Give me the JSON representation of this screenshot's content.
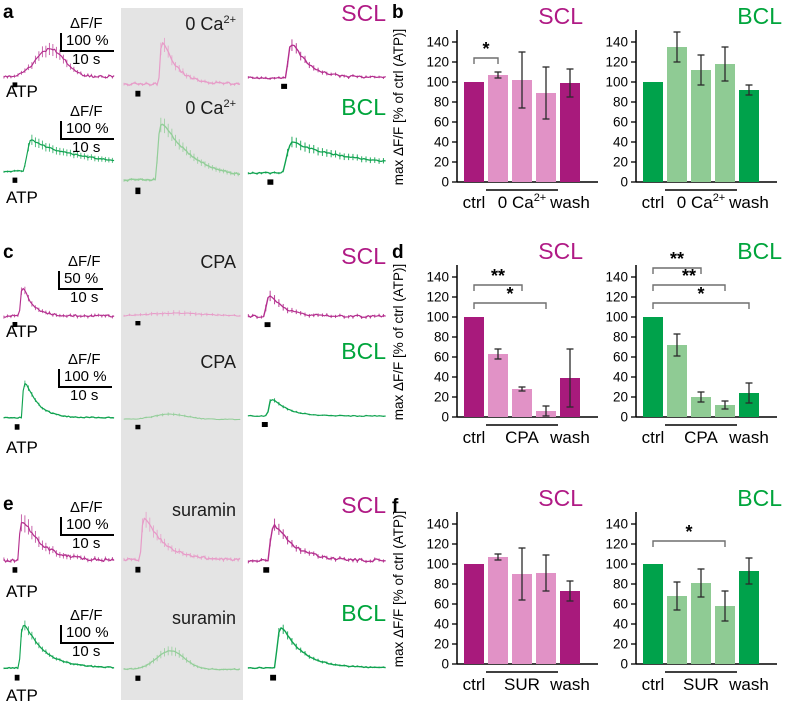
{
  "colors": {
    "scl_dark": "#a81a7c",
    "scl_light": "#e192c6",
    "bcl_dark": "#00a24b",
    "bcl_light": "#8fcb94",
    "scl_title": "#b01a85",
    "bcl_title": "#00a53c",
    "trace_scl_dark": "#b42e8e",
    "trace_scl_light": "#e79cc8",
    "trace_bcl_dark": "#10a350",
    "trace_bcl_light": "#93ce99",
    "gray_band": "#e4e4e4",
    "error_bar": "#2b2b2b",
    "bracket": "#6f6f6f",
    "axis": "#000000"
  },
  "trace_section": {
    "panels": [
      {
        "letter": "a",
        "condition": {
          "base": "0 Ca",
          "sup": "2+"
        },
        "rows": [
          {
            "cell": "SCL",
            "atp": "ATP",
            "scale": {
              "df": "ΔF/F",
              "amount": "100 %",
              "time": "10 s"
            }
          },
          {
            "cell": "BCL",
            "atp": "ATP",
            "scale": {
              "df": "ΔF/F",
              "amount": "100 %",
              "time": "10 s"
            }
          }
        ]
      },
      {
        "letter": "c",
        "condition": {
          "base": "CPA",
          "sup": ""
        },
        "rows": [
          {
            "cell": "SCL",
            "atp": "ATP",
            "scale": {
              "df": "ΔF/F",
              "amount": "50 %",
              "time": "10 s"
            }
          },
          {
            "cell": "BCL",
            "atp": "ATP",
            "scale": {
              "df": "ΔF/F",
              "amount": "100 %",
              "time": "10 s"
            }
          }
        ]
      },
      {
        "letter": "e",
        "condition": {
          "base": "suramin",
          "sup": ""
        },
        "rows": [
          {
            "cell": "SCL",
            "atp": "ATP",
            "scale": {
              "df": "ΔF/F",
              "amount": "100 %",
              "time": "10 s"
            }
          },
          {
            "cell": "BCL",
            "atp": "ATP",
            "scale": {
              "df": "ΔF/F",
              "amount": "100 %",
              "time": "10 s"
            }
          }
        ]
      }
    ]
  },
  "chart_section": {
    "letters": [
      "b",
      "d",
      "f"
    ]
  },
  "chart_data": {
    "bar_charts": [
      {
        "id": "b_scl",
        "type": "bar",
        "title": "SCL",
        "title_color": "#b01a85",
        "color_dark": "#a81a7c",
        "color_light": "#e192c6",
        "show_ylabel": true,
        "ylabel": "max ΔF/F [% of ctrl (ATP)]",
        "ylim": [
          0,
          150
        ],
        "yticks": [
          0,
          20,
          40,
          60,
          80,
          100,
          120,
          140
        ],
        "categories": [
          "ctrl",
          "0 Ca2+",
          "0 Ca2+",
          "0 Ca2+",
          "wash"
        ],
        "values": [
          100,
          107,
          102,
          89,
          99
        ],
        "errors": [
          0,
          3,
          28,
          26,
          14
        ],
        "dark": [
          1,
          0,
          0,
          0,
          1
        ],
        "x_left": "ctrl",
        "x_right": "wash",
        "group": {
          "base": "0 Ca",
          "sup": "2+"
        },
        "margin_left": 67,
        "y_offset": 0,
        "sig": [
          {
            "i1": 0,
            "i2": 1,
            "stars": "*",
            "y": 124
          }
        ]
      },
      {
        "id": "b_bcl",
        "type": "bar",
        "title": "BCL",
        "title_color": "#00a53c",
        "color_dark": "#00a24b",
        "color_light": "#8fcb94",
        "show_ylabel": false,
        "ylabel": "max ΔF/F [% of ctrl (ATP)]",
        "ylim": [
          0,
          150
        ],
        "yticks": [
          0,
          20,
          40,
          60,
          80,
          100,
          120,
          140
        ],
        "categories": [
          "ctrl",
          "0 Ca2+",
          "0 Ca2+",
          "0 Ca2+",
          "wash"
        ],
        "values": [
          100,
          135,
          112,
          118,
          92
        ],
        "errors": [
          0,
          15,
          15,
          17,
          5
        ],
        "dark": [
          1,
          0,
          0,
          0,
          1
        ],
        "x_left": "ctrl",
        "x_right": "wash",
        "group": {
          "base": "0 Ca",
          "sup": "2+"
        },
        "margin_left": 47,
        "y_offset": 0,
        "sig": []
      },
      {
        "id": "d_scl",
        "type": "bar",
        "title": "SCL",
        "title_color": "#b01a85",
        "color_dark": "#a81a7c",
        "color_light": "#e192c6",
        "show_ylabel": true,
        "ylabel": "max ΔF/F [% of ctrl (ATP)]",
        "ylim": [
          0,
          150
        ],
        "yticks": [
          0,
          20,
          40,
          60,
          80,
          100,
          120,
          140
        ],
        "categories": [
          "ctrl",
          "CPA",
          "CPA",
          "CPA",
          "wash"
        ],
        "values": [
          100,
          63,
          28,
          6,
          39
        ],
        "errors": [
          0,
          5,
          2,
          5,
          29
        ],
        "dark": [
          1,
          0,
          0,
          0,
          1
        ],
        "x_left": "ctrl",
        "x_right": "wash",
        "group": {
          "base": "CPA",
          "sup": ""
        },
        "margin_left": 67,
        "y_offset": 0,
        "sig": [
          {
            "i1": 0,
            "i2": 2,
            "stars": "**",
            "y": 132
          },
          {
            "i1": 0,
            "i2": 3,
            "stars": "*",
            "y": 114
          }
        ]
      },
      {
        "id": "d_bcl",
        "type": "bar",
        "title": "BCL",
        "title_color": "#00a53c",
        "color_dark": "#00a24b",
        "color_light": "#8fcb94",
        "show_ylabel": false,
        "ylabel": "max ΔF/F [% of ctrl (ATP)]",
        "ylim": [
          0,
          150
        ],
        "yticks": [
          0,
          20,
          40,
          60,
          80,
          100,
          120,
          140
        ],
        "categories": [
          "ctrl",
          "CPA",
          "CPA",
          "CPA",
          "wash"
        ],
        "values": [
          100,
          72,
          20,
          12,
          24
        ],
        "errors": [
          0,
          11,
          5,
          4,
          10
        ],
        "dark": [
          1,
          0,
          0,
          0,
          1
        ],
        "x_left": "ctrl",
        "x_right": "wash",
        "group": {
          "base": "CPA",
          "sup": ""
        },
        "margin_left": 47,
        "y_offset": 0,
        "sig": [
          {
            "i1": 0,
            "i2": 2,
            "stars": "**",
            "y": 149
          },
          {
            "i1": 0,
            "i2": 3,
            "stars": "**",
            "y": 132
          },
          {
            "i1": 0,
            "i2": 4,
            "stars": "*",
            "y": 114
          }
        ]
      },
      {
        "id": "f_scl",
        "type": "bar",
        "title": "SCL",
        "title_color": "#b01a85",
        "color_dark": "#a81a7c",
        "color_light": "#e192c6",
        "show_ylabel": true,
        "ylabel": "max ΔF/F [% of ctrl (ATP)]",
        "ylim": [
          0,
          150
        ],
        "yticks": [
          0,
          20,
          40,
          60,
          80,
          100,
          120,
          140
        ],
        "categories": [
          "ctrl",
          "SUR",
          "SUR",
          "SUR",
          "wash"
        ],
        "values": [
          100,
          107,
          90,
          91,
          73
        ],
        "errors": [
          0,
          3,
          26,
          18,
          10
        ],
        "dark": [
          1,
          0,
          0,
          0,
          1
        ],
        "x_left": "ctrl",
        "x_right": "wash",
        "group": {
          "base": "SUR",
          "sup": ""
        },
        "margin_left": 67,
        "y_offset": 12,
        "sig": []
      },
      {
        "id": "f_bcl",
        "type": "bar",
        "title": "BCL",
        "title_color": "#00a53c",
        "color_dark": "#00a24b",
        "color_light": "#8fcb94",
        "show_ylabel": false,
        "ylabel": "max ΔF/F [% of ctrl (ATP)]",
        "ylim": [
          0,
          150
        ],
        "yticks": [
          0,
          20,
          40,
          60,
          80,
          100,
          120,
          140
        ],
        "categories": [
          "ctrl",
          "SUR",
          "SUR",
          "SUR",
          "wash"
        ],
        "values": [
          100,
          68,
          81,
          58,
          93
        ],
        "errors": [
          0,
          14,
          14,
          15,
          13
        ],
        "dark": [
          1,
          0,
          0,
          0,
          1
        ],
        "x_left": "ctrl",
        "x_right": "wash",
        "group": {
          "base": "SUR",
          "sup": ""
        },
        "margin_left": 47,
        "y_offset": 12,
        "sig": [
          {
            "i1": 0,
            "i2": 3,
            "stars": "*",
            "y": 123
          }
        ]
      }
    ],
    "traces": [
      {
        "id": "a_scl_ctrl",
        "panel": "a",
        "row": "scl",
        "condition": "ctrl",
        "shade": "dark",
        "kind": "bump",
        "peak": 0.5,
        "center": 0.42,
        "sigma": 0.13,
        "noise": 0.022,
        "err_every": 2,
        "err_base": 1.4,
        "err_peak": 5,
        "mark": 0.1
      },
      {
        "id": "a_scl_0ca",
        "panel": "a",
        "row": "scl",
        "condition": "0 Ca2+",
        "shade": "light",
        "kind": "sharp",
        "peak": 0.95,
        "onset": 0.3,
        "tau": 0.12,
        "noise": 0.02,
        "err_every": 2,
        "err_base": 1.2,
        "err_peak": 8,
        "mark": 0.12
      },
      {
        "id": "a_scl_wash",
        "panel": "a",
        "row": "scl",
        "condition": "wash",
        "shade": "dark",
        "kind": "sharp",
        "peak": 0.88,
        "onset": 0.28,
        "tau": 0.12,
        "noise": 0.02,
        "err_every": 2,
        "err_base": 1.2,
        "err_peak": 7,
        "mark": 0.26
      },
      {
        "id": "a_bcl_ctrl",
        "panel": "a",
        "row": "bcl",
        "condition": "ctrl",
        "shade": "dark",
        "kind": "plateau",
        "peak": 0.6,
        "onset": 0.18,
        "tau": 0.5,
        "noise": 0.012,
        "err_every": 2,
        "err_base": 1.0,
        "err_peak": 4.5,
        "mark": 0.1
      },
      {
        "id": "a_bcl_0ca",
        "panel": "a",
        "row": "bcl",
        "condition": "0 Ca2+",
        "shade": "light",
        "kind": "sharp",
        "peak": 0.95,
        "onset": 0.28,
        "tau": 0.28,
        "noise": 0.012,
        "err_every": 2,
        "err_base": 1.0,
        "err_peak": 6,
        "mark": 0.12
      },
      {
        "id": "a_bcl_wash",
        "panel": "a",
        "row": "bcl",
        "condition": "wash",
        "shade": "dark",
        "kind": "plateau",
        "peak": 0.58,
        "onset": 0.25,
        "tau": 0.55,
        "noise": 0.012,
        "err_every": 2,
        "err_base": 1.0,
        "err_peak": 4.5,
        "mark": 0.16
      },
      {
        "id": "c_scl_ctrl",
        "panel": "c",
        "row": "scl",
        "condition": "ctrl",
        "shade": "dark",
        "kind": "sharp",
        "peak": 0.8,
        "onset": 0.14,
        "tau": 0.09,
        "noise": 0.02,
        "err_every": 2,
        "err_base": 1.6,
        "err_peak": 4,
        "mark": 0.1
      },
      {
        "id": "c_scl_cpa",
        "panel": "c",
        "row": "scl",
        "condition": "CPA",
        "shade": "light",
        "kind": "bump",
        "peak": 0.05,
        "center": 0.45,
        "sigma": 0.22,
        "noise": 0.01,
        "err_every": 3,
        "err_base": 1.0,
        "err_peak": 2,
        "mark": 0.12
      },
      {
        "id": "c_scl_wash",
        "panel": "c",
        "row": "scl",
        "condition": "wash",
        "shade": "dark",
        "kind": "sharp",
        "peak": 0.55,
        "onset": 0.12,
        "tau": 0.11,
        "noise": 0.02,
        "err_every": 2,
        "err_base": 1.6,
        "err_peak": 6,
        "mark": 0.14
      },
      {
        "id": "c_bcl_ctrl",
        "panel": "c",
        "row": "bcl",
        "condition": "ctrl",
        "shade": "dark",
        "kind": "sharp",
        "peak": 0.85,
        "onset": 0.16,
        "tau": 0.11,
        "noise": 0.008,
        "err_every": 2,
        "err_base": 0.6,
        "err_peak": 3.5,
        "mark": 0.12
      },
      {
        "id": "c_bcl_cpa",
        "panel": "c",
        "row": "bcl",
        "condition": "CPA",
        "shade": "light",
        "kind": "bump",
        "peak": 0.1,
        "center": 0.4,
        "sigma": 0.14,
        "noise": 0.006,
        "err_every": 3,
        "err_base": 0.4,
        "err_peak": 1.5,
        "mark": 0.12
      },
      {
        "id": "c_bcl_wash",
        "panel": "c",
        "row": "bcl",
        "condition": "wash",
        "shade": "dark",
        "kind": "sharp",
        "peak": 0.46,
        "onset": 0.14,
        "tau": 0.11,
        "noise": 0.008,
        "err_every": 2,
        "err_base": 0.6,
        "err_peak": 2.5,
        "mark": 0.12
      },
      {
        "id": "e_scl_ctrl",
        "panel": "e",
        "row": "scl",
        "condition": "ctrl",
        "shade": "dark",
        "kind": "sharp",
        "peak": 0.85,
        "onset": 0.13,
        "tau": 0.18,
        "noise": 0.025,
        "err_every": 2,
        "err_base": 1.6,
        "err_peak": 9,
        "mark": 0.1
      },
      {
        "id": "e_scl_sur",
        "panel": "e",
        "row": "scl",
        "condition": "suramin",
        "shade": "light",
        "kind": "sharp",
        "peak": 0.9,
        "onset": 0.14,
        "tau": 0.16,
        "noise": 0.022,
        "err_every": 2,
        "err_base": 1.4,
        "err_peak": 8,
        "mark": 0.12
      },
      {
        "id": "e_scl_wash",
        "panel": "e",
        "row": "scl",
        "condition": "wash",
        "shade": "dark",
        "kind": "sharp",
        "peak": 0.8,
        "onset": 0.15,
        "tau": 0.15,
        "noise": 0.022,
        "err_every": 2,
        "err_base": 1.4,
        "err_peak": 6,
        "mark": 0.13
      },
      {
        "id": "e_bcl_ctrl",
        "panel": "e",
        "row": "bcl",
        "condition": "ctrl",
        "shade": "dark",
        "kind": "sharp",
        "peak": 0.9,
        "onset": 0.14,
        "tau": 0.18,
        "noise": 0.008,
        "err_every": 2,
        "err_base": 0.7,
        "err_peak": 5,
        "mark": 0.12
      },
      {
        "id": "e_bcl_sur",
        "panel": "e",
        "row": "bcl",
        "condition": "suramin",
        "shade": "light",
        "kind": "bump",
        "peak": 0.3,
        "center": 0.4,
        "sigma": 0.12,
        "noise": 0.008,
        "err_every": 2,
        "err_base": 0.8,
        "err_peak": 3.5,
        "mark": 0.12
      },
      {
        "id": "e_bcl_wash",
        "panel": "e",
        "row": "bcl",
        "condition": "wash",
        "shade": "dark",
        "kind": "sharp",
        "peak": 0.88,
        "onset": 0.2,
        "tau": 0.15,
        "noise": 0.008,
        "err_every": 2,
        "err_base": 0.7,
        "err_peak": 5,
        "mark": 0.18
      }
    ]
  }
}
